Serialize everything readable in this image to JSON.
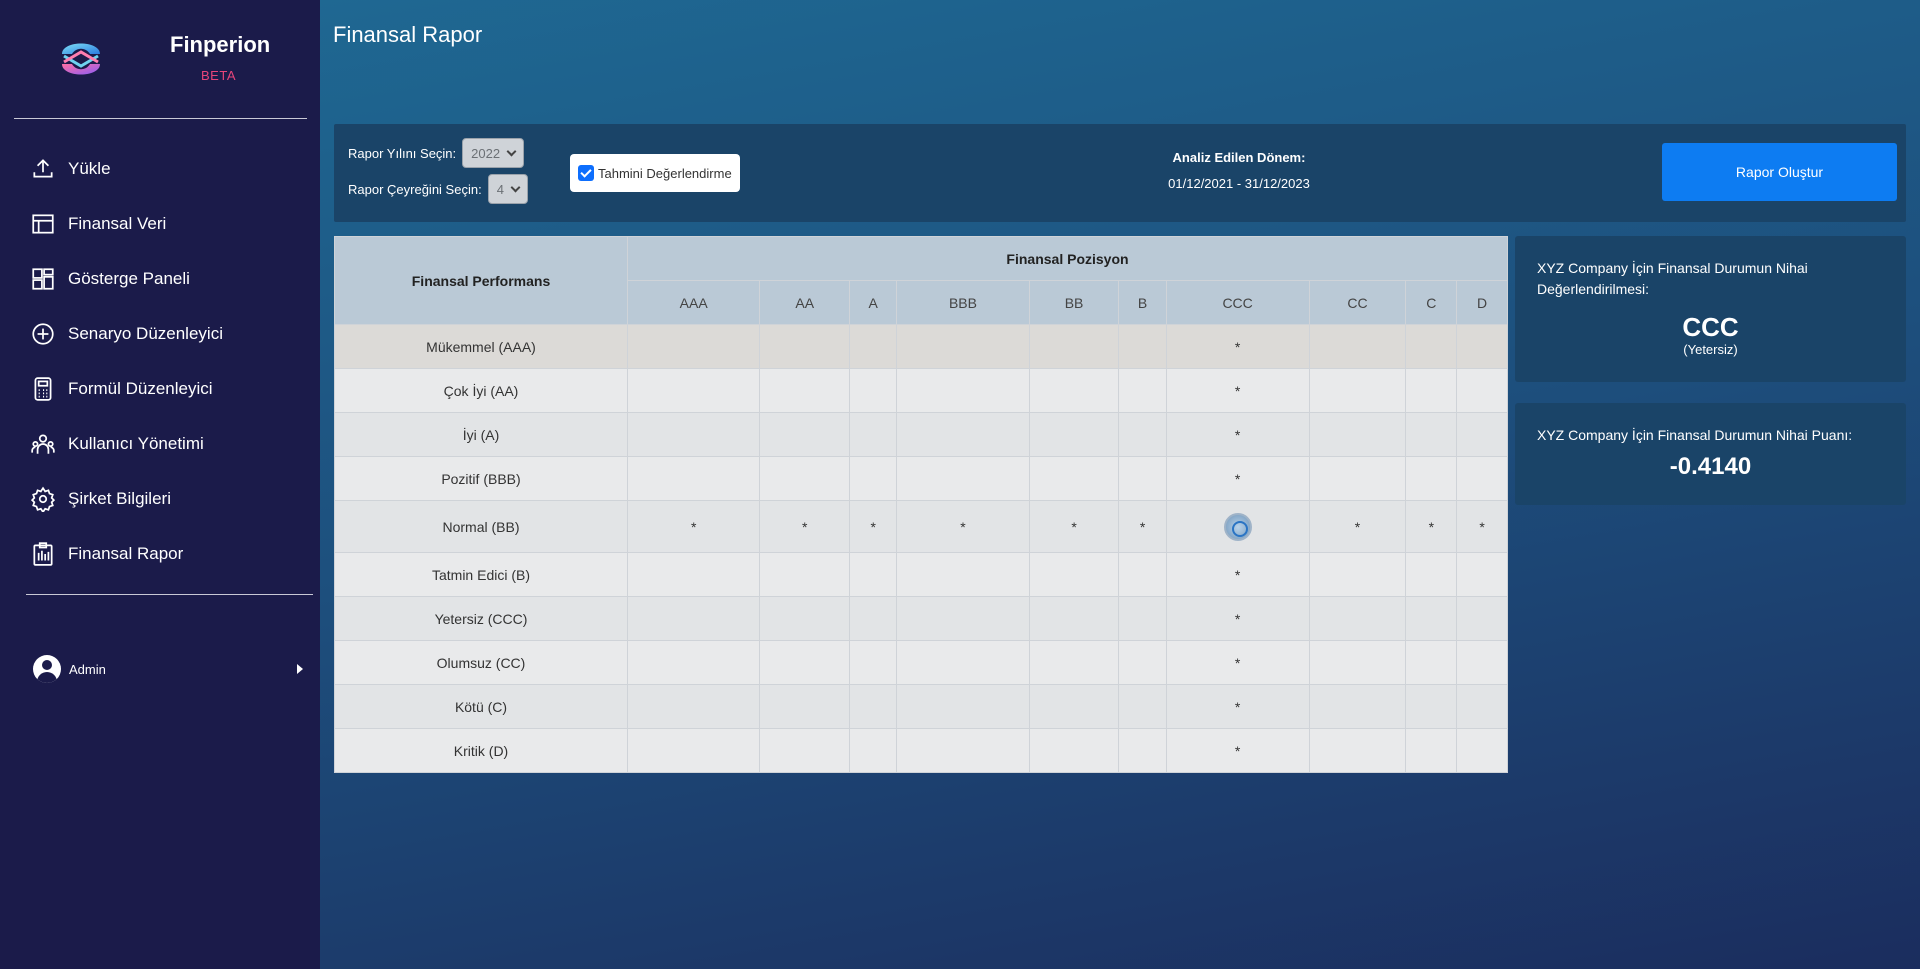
{
  "brand": {
    "name": "Finperion",
    "badge": "BETA"
  },
  "nav": [
    {
      "label": "Yükle",
      "icon": "upload-icon"
    },
    {
      "label": "Finansal Veri",
      "icon": "table-icon"
    },
    {
      "label": "Gösterge Paneli",
      "icon": "dashboard-icon"
    },
    {
      "label": "Senaryo Düzenleyici",
      "icon": "plus-circle-icon"
    },
    {
      "label": "Formül Düzenleyici",
      "icon": "calculator-icon"
    },
    {
      "label": "Kullanıcı Yönetimi",
      "icon": "users-icon"
    },
    {
      "label": "Şirket Bilgileri",
      "icon": "gear-icon"
    },
    {
      "label": "Finansal Rapor",
      "icon": "clipboard-icon"
    }
  ],
  "user": {
    "name": "Admin"
  },
  "page": {
    "title": "Finansal Rapor"
  },
  "controls": {
    "year_label": "Rapor Yılını Seçin:",
    "year_value": "2022",
    "quarter_label": "Rapor Çeyreğini Seçin:",
    "quarter_value": "4",
    "estimate_label": "Tahmini Değerlendirme",
    "estimate_checked": true,
    "period_label": "Analiz Edilen Dönem:",
    "period_value": "01/12/2021 - 31/12/2023",
    "report_button": "Rapor Oluştur"
  },
  "matrix": {
    "row_header": "Finansal Performans",
    "col_header": "Finansal Pozisyon",
    "columns": [
      "AAA",
      "AA",
      "A",
      "BBB",
      "BB",
      "B",
      "CCC",
      "CC",
      "C",
      "D"
    ],
    "rows": [
      {
        "label": "Mükemmel (AAA)",
        "cells": [
          "",
          "",
          "",
          "",
          "",
          "",
          "*",
          "",
          "",
          ""
        ]
      },
      {
        "label": "Çok İyi (AA)",
        "cells": [
          "",
          "",
          "",
          "",
          "",
          "",
          "*",
          "",
          "",
          ""
        ]
      },
      {
        "label": "İyi (A)",
        "cells": [
          "",
          "",
          "",
          "",
          "",
          "",
          "*",
          "",
          "",
          ""
        ]
      },
      {
        "label": "Pozitif (BBB)",
        "cells": [
          "",
          "",
          "",
          "",
          "",
          "",
          "*",
          "",
          "",
          ""
        ]
      },
      {
        "label": "Normal (BB)",
        "cells": [
          "*",
          "*",
          "*",
          "*",
          "*",
          "*",
          "@",
          "*",
          "*",
          "*"
        ]
      },
      {
        "label": "Tatmin Edici (B)",
        "cells": [
          "",
          "",
          "",
          "",
          "",
          "",
          "*",
          "",
          "",
          ""
        ]
      },
      {
        "label": "Yetersiz (CCC)",
        "cells": [
          "",
          "",
          "",
          "",
          "",
          "",
          "*",
          "",
          "",
          ""
        ]
      },
      {
        "label": "Olumsuz (CC)",
        "cells": [
          "",
          "",
          "",
          "",
          "",
          "",
          "*",
          "",
          "",
          ""
        ]
      },
      {
        "label": "Kötü (C)",
        "cells": [
          "",
          "",
          "",
          "",
          "",
          "",
          "*",
          "",
          "",
          ""
        ]
      },
      {
        "label": "Kritik (D)",
        "cells": [
          "",
          "",
          "",
          "",
          "",
          "",
          "*",
          "",
          "",
          ""
        ]
      }
    ]
  },
  "assessment": {
    "title": "XYZ Company İçin Finansal Durumun Nihai Değerlendirilmesi:",
    "grade": "CCC",
    "grade_label": "(Yetersiz)"
  },
  "score": {
    "title": "XYZ Company İçin Finansal Durumun Nihai Puanı:",
    "value": "-0.4140"
  }
}
